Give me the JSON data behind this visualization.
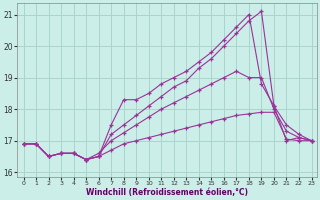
{
  "xlabel": "Windchill (Refroidissement éolien,°C)",
  "bg_color": "#cceee8",
  "grid_color": "#aad4cc",
  "line_color": "#993399",
  "xlim_min": -0.5,
  "xlim_max": 23.4,
  "ylim_min": 15.85,
  "ylim_max": 21.35,
  "yticks": [
    16,
    17,
    18,
    19,
    20,
    21
  ],
  "xticks": [
    0,
    1,
    2,
    3,
    4,
    5,
    6,
    7,
    8,
    9,
    10,
    11,
    12,
    13,
    14,
    15,
    16,
    17,
    18,
    19,
    20,
    21,
    22,
    23
  ],
  "line1_x": [
    0,
    1,
    2,
    3,
    4,
    5,
    6,
    7,
    8,
    9,
    10,
    11,
    12,
    13,
    14,
    15,
    16,
    17,
    18,
    19,
    20,
    21,
    22,
    23
  ],
  "line1_y": [
    16.9,
    16.9,
    16.5,
    16.6,
    16.6,
    16.4,
    16.5,
    17.5,
    18.3,
    18.3,
    18.5,
    18.8,
    19.0,
    19.2,
    19.5,
    19.8,
    20.2,
    20.6,
    21.0,
    18.8,
    18.1,
    17.5,
    17.2,
    17.0
  ],
  "line2_x": [
    0,
    1,
    2,
    3,
    4,
    5,
    6,
    7,
    8,
    9,
    10,
    11,
    12,
    13,
    14,
    15,
    16,
    17,
    18,
    19,
    20,
    21,
    22,
    23
  ],
  "line2_y": [
    16.9,
    16.9,
    16.5,
    16.6,
    16.6,
    16.4,
    16.5,
    17.2,
    17.5,
    17.8,
    18.1,
    18.4,
    18.7,
    18.9,
    19.3,
    19.6,
    20.0,
    20.4,
    20.8,
    21.1,
    18.1,
    17.0,
    17.1,
    17.0
  ],
  "line3_x": [
    0,
    1,
    2,
    3,
    4,
    5,
    6,
    7,
    8,
    9,
    10,
    11,
    12,
    13,
    14,
    15,
    16,
    17,
    18,
    19,
    20,
    21,
    22,
    23
  ],
  "line3_y": [
    16.9,
    16.9,
    16.5,
    16.6,
    16.6,
    16.4,
    16.6,
    17.0,
    17.25,
    17.5,
    17.75,
    18.0,
    18.2,
    18.4,
    18.6,
    18.8,
    19.0,
    19.2,
    19.0,
    19.0,
    18.0,
    17.3,
    17.1,
    17.0
  ],
  "line4_x": [
    0,
    1,
    2,
    3,
    4,
    5,
    6,
    7,
    8,
    9,
    10,
    11,
    12,
    13,
    14,
    15,
    16,
    17,
    18,
    19,
    20,
    21,
    22,
    23
  ],
  "line4_y": [
    16.9,
    16.9,
    16.5,
    16.6,
    16.6,
    16.4,
    16.5,
    16.7,
    16.9,
    17.0,
    17.1,
    17.2,
    17.3,
    17.4,
    17.5,
    17.6,
    17.7,
    17.8,
    17.85,
    17.9,
    17.9,
    17.05,
    17.0,
    17.0
  ]
}
